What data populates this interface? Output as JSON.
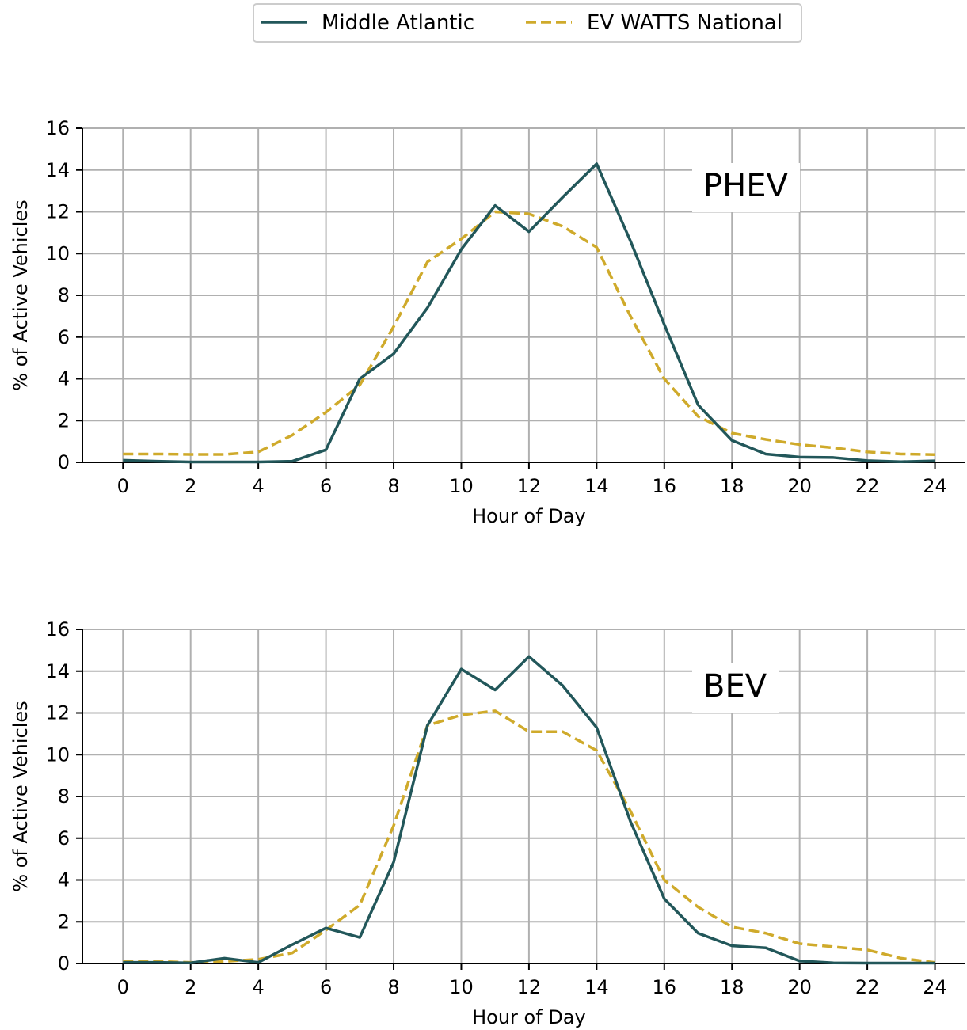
{
  "legend": {
    "entries": [
      {
        "label": "Middle Atlantic",
        "color": "#22575a",
        "style": "solid"
      },
      {
        "label": "EV WATTS National",
        "color": "#cfaa2b",
        "style": "dashed"
      }
    ]
  },
  "chart_data": [
    {
      "type": "line",
      "panel_label": "PHEV",
      "xlabel": "Hour of Day",
      "ylabel": "% of Active Vehicles",
      "xlim": [
        -1.2,
        24.9
      ],
      "ylim": [
        0,
        16
      ],
      "xticks": [
        0,
        2,
        4,
        6,
        8,
        10,
        12,
        14,
        16,
        18,
        20,
        22,
        24
      ],
      "yticks": [
        0,
        2,
        4,
        6,
        8,
        10,
        12,
        14,
        16
      ],
      "grid": true,
      "x": [
        0,
        1,
        2,
        3,
        4,
        5,
        6,
        7,
        8,
        9,
        10,
        11,
        12,
        13,
        14,
        15,
        16,
        17,
        18,
        19,
        20,
        21,
        22,
        23,
        24
      ],
      "series": [
        {
          "name": "Middle Atlantic",
          "color": "#22575a",
          "style": "solid",
          "values": [
            0.1,
            0.05,
            0.02,
            0.02,
            0.02,
            0.05,
            0.6,
            4.0,
            5.2,
            7.4,
            10.2,
            12.3,
            11.05,
            12.7,
            14.3,
            10.6,
            6.6,
            2.75,
            1.05,
            0.4,
            0.25,
            0.23,
            0.08,
            0.03,
            0.07
          ]
        },
        {
          "name": "EV WATTS National",
          "color": "#cfaa2b",
          "style": "dashed",
          "values": [
            0.4,
            0.4,
            0.38,
            0.38,
            0.5,
            1.3,
            2.4,
            3.7,
            6.5,
            9.6,
            10.7,
            12.0,
            11.9,
            11.3,
            10.3,
            7.0,
            4.0,
            2.2,
            1.4,
            1.1,
            0.85,
            0.7,
            0.5,
            0.4,
            0.37
          ]
        }
      ]
    },
    {
      "type": "line",
      "panel_label": "BEV",
      "xlabel": "Hour of Day",
      "ylabel": "% of Active Vehicles",
      "xlim": [
        -1.2,
        24.9
      ],
      "ylim": [
        0,
        16
      ],
      "xticks": [
        0,
        2,
        4,
        6,
        8,
        10,
        12,
        14,
        16,
        18,
        20,
        22,
        24
      ],
      "yticks": [
        0,
        2,
        4,
        6,
        8,
        10,
        12,
        14,
        16
      ],
      "grid": true,
      "x": [
        0,
        1,
        2,
        3,
        4,
        5,
        6,
        7,
        8,
        9,
        10,
        11,
        12,
        13,
        14,
        15,
        16,
        17,
        18,
        19,
        20,
        21,
        22,
        23,
        24
      ],
      "series": [
        {
          "name": "Middle Atlantic",
          "color": "#22575a",
          "style": "solid",
          "values": [
            0.05,
            0.05,
            0.03,
            0.25,
            0.05,
            0.9,
            1.7,
            1.25,
            4.85,
            11.4,
            14.1,
            13.1,
            14.7,
            13.3,
            11.3,
            6.8,
            3.1,
            1.45,
            0.85,
            0.75,
            0.12,
            0.03,
            0.02,
            0.02,
            0.02
          ]
        },
        {
          "name": "EV WATTS National",
          "color": "#cfaa2b",
          "style": "dashed",
          "values": [
            0.1,
            0.1,
            0.05,
            0.1,
            0.2,
            0.5,
            1.6,
            2.8,
            6.6,
            11.4,
            11.9,
            12.1,
            11.1,
            11.1,
            10.2,
            7.3,
            4.0,
            2.7,
            1.75,
            1.45,
            0.95,
            0.8,
            0.65,
            0.25,
            0.05
          ]
        }
      ]
    }
  ]
}
